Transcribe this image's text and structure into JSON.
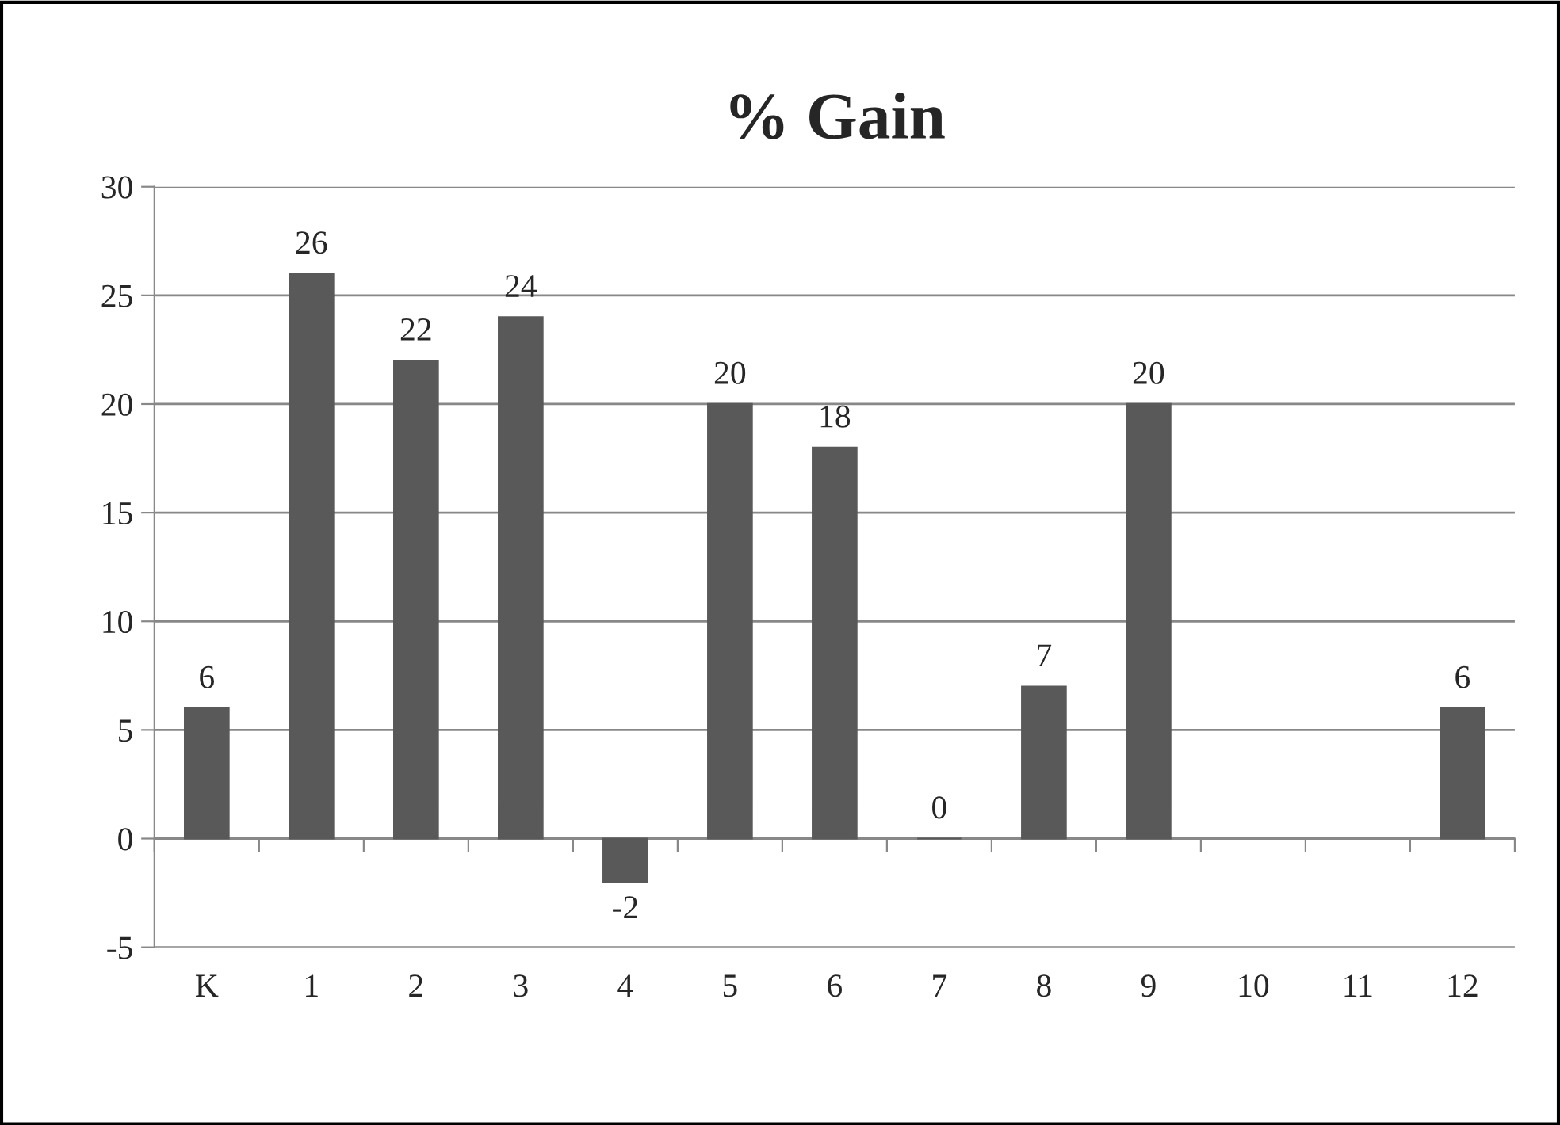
{
  "chart_data": {
    "type": "bar",
    "title": "% Gain",
    "categories": [
      "K",
      "1",
      "2",
      "3",
      "4",
      "5",
      "6",
      "7",
      "8",
      "9",
      "10",
      "11",
      "12"
    ],
    "values": [
      6,
      26,
      22,
      24,
      -2,
      20,
      18,
      0,
      7,
      20,
      null,
      null,
      6
    ],
    "color": "#595959",
    "ylim": [
      -5,
      30
    ],
    "yticks": [
      -5,
      0,
      5,
      10,
      15,
      20,
      25,
      30
    ],
    "grid": "y",
    "data_labels": true,
    "legend": false
  }
}
